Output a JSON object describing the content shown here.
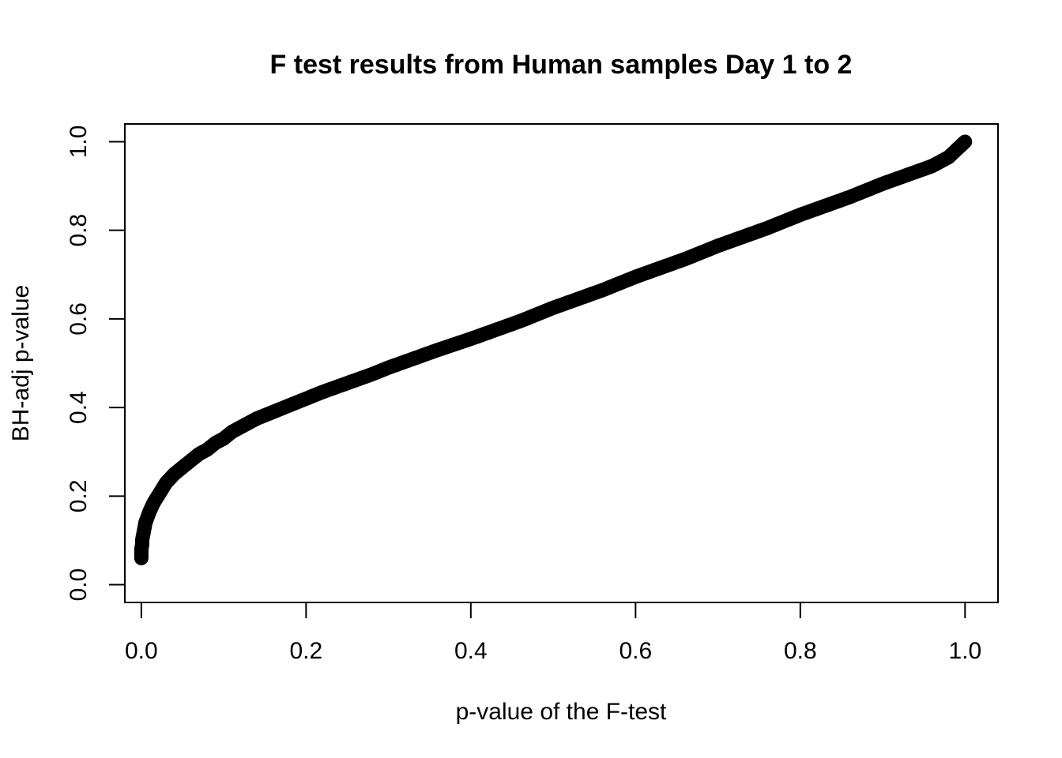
{
  "chart_data": {
    "type": "scatter",
    "title": "F test results from Human samples Day 1 to 2",
    "xlabel": "p-value of the F-test",
    "ylabel": "BH-adj p-value",
    "xlim": [
      -0.02,
      1.04
    ],
    "ylim": [
      -0.04,
      1.04
    ],
    "x_ticks": [
      0.0,
      0.2,
      0.4,
      0.6,
      0.8,
      1.0
    ],
    "x_tick_labels": [
      "0.0",
      "0.2",
      "0.4",
      "0.6",
      "0.8",
      "1.0"
    ],
    "y_ticks": [
      0.0,
      0.2,
      0.4,
      0.6,
      0.8,
      1.0
    ],
    "y_tick_labels": [
      "0.0",
      "0.2",
      "0.4",
      "0.6",
      "0.8",
      "1.0"
    ],
    "grid": false,
    "legend": "none",
    "marker": "open-circle",
    "color": "#000000",
    "series": [
      {
        "x": [
          0.0,
          0.0,
          0.0,
          0.0,
          0.0,
          0.001,
          0.001,
          0.002,
          0.003,
          0.004,
          0.005,
          0.007,
          0.01,
          0.015,
          0.02,
          0.025,
          0.03,
          0.035,
          0.04,
          0.05,
          0.06,
          0.07,
          0.08,
          0.09,
          0.1,
          0.11,
          0.12,
          0.14,
          0.16,
          0.18,
          0.2,
          0.22,
          0.25,
          0.28,
          0.3,
          0.33,
          0.36,
          0.4,
          0.43,
          0.46,
          0.5,
          0.53,
          0.56,
          0.6,
          0.63,
          0.66,
          0.7,
          0.73,
          0.76,
          0.8,
          0.83,
          0.86,
          0.9,
          0.93,
          0.96,
          0.98,
          1.0
        ],
        "y": [
          0.06,
          0.065,
          0.07,
          0.075,
          0.08,
          0.09,
          0.1,
          0.11,
          0.12,
          0.13,
          0.14,
          0.15,
          0.165,
          0.185,
          0.2,
          0.215,
          0.23,
          0.24,
          0.25,
          0.265,
          0.28,
          0.295,
          0.305,
          0.32,
          0.33,
          0.345,
          0.355,
          0.375,
          0.39,
          0.405,
          0.42,
          0.435,
          0.455,
          0.475,
          0.49,
          0.51,
          0.53,
          0.555,
          0.575,
          0.595,
          0.625,
          0.645,
          0.665,
          0.695,
          0.715,
          0.735,
          0.765,
          0.785,
          0.805,
          0.835,
          0.855,
          0.875,
          0.905,
          0.925,
          0.945,
          0.965,
          1.0
        ]
      }
    ]
  }
}
